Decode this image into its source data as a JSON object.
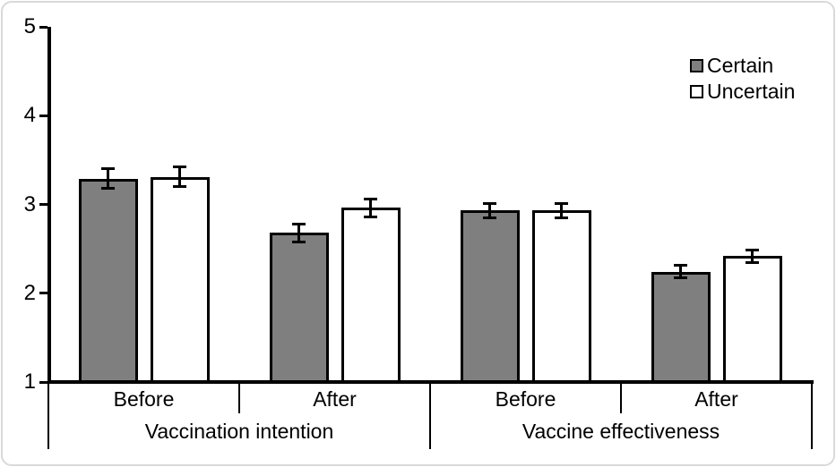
{
  "chart_data": {
    "type": "bar",
    "title": "",
    "xlabel": "",
    "ylabel": "",
    "groups": [
      "Vaccination intention",
      "Vaccine effectiveness"
    ],
    "categories": [
      "Before",
      "After"
    ],
    "series": [
      {
        "name": "Certain",
        "color": "#7f7f7f",
        "values": [
          [
            3.29,
            2.68
          ],
          [
            2.93,
            2.24
          ]
        ],
        "errors": [
          [
            0.11,
            0.1
          ],
          [
            0.08,
            0.07
          ]
        ]
      },
      {
        "name": "Uncertain",
        "color": "#ffffff",
        "values": [
          [
            3.31,
            2.96
          ],
          [
            2.93,
            2.42
          ]
        ],
        "errors": [
          [
            0.11,
            0.1
          ],
          [
            0.08,
            0.07
          ]
        ]
      }
    ],
    "ylim": [
      1,
      5
    ],
    "yticks": [
      1,
      2,
      3,
      4,
      5
    ],
    "grid": false,
    "legend_position": "top-right",
    "bar_border_color": "#000000",
    "error_bar_color": "#000000"
  }
}
